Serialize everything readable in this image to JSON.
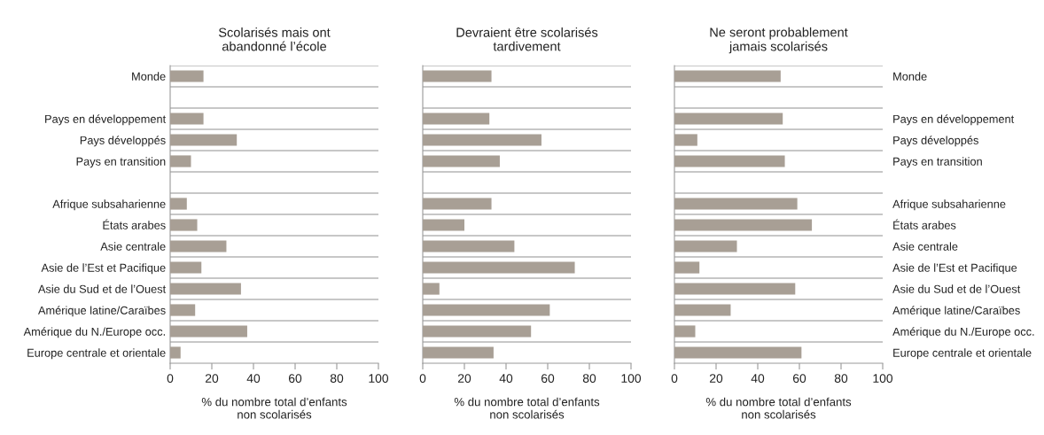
{
  "chart_data": [
    {
      "type": "bar",
      "orientation": "horizontal",
      "title": "Scolarisés mais ont\nabandonné l’école",
      "xlabel": "% du nombre total d’enfants\nnon scolarisés",
      "categories": [
        "Monde",
        null,
        "Pays en développement",
        "Pays développés",
        "Pays en transition",
        null,
        "Afrique subsaharienne",
        "États arabes",
        "Asie centrale",
        "Asie de l’Est et Pacifique",
        "Asie du Sud et de l’Ouest",
        "Amérique latine/Caraïbes",
        "Amérique du N./Europe occ.",
        "Europe centrale et orientale"
      ],
      "values": [
        16,
        null,
        16,
        32,
        10,
        null,
        8,
        13,
        27,
        15,
        34,
        12,
        37,
        5
      ],
      "color": "#a89f95",
      "xlim": [
        0,
        100
      ],
      "xticks": [
        0,
        20,
        40,
        60,
        80,
        100
      ],
      "grid": "y"
    },
    {
      "type": "bar",
      "orientation": "horizontal",
      "title": "Devraient être scolarisés\ntardivement",
      "xlabel": "% du nombre total d’enfants\nnon scolarisés",
      "categories": [
        null,
        null,
        null,
        null,
        null,
        null,
        null,
        null,
        null,
        null,
        null,
        null,
        null,
        null
      ],
      "values": [
        33,
        null,
        32,
        57,
        37,
        null,
        33,
        20,
        44,
        73,
        8,
        61,
        52,
        34
      ],
      "color": "#a89f95",
      "xlim": [
        0,
        100
      ],
      "xticks": [
        0,
        20,
        40,
        60,
        80,
        100
      ],
      "grid": "y",
      "tick_labels": "x"
    },
    {
      "type": "bar",
      "orientation": "horizontal",
      "title": "Ne seront probablement\njamais scolarisés",
      "xlabel": "% du nombre total d’enfants\nnon scolarisés",
      "categories": [
        "Monde",
        null,
        "Pays en développement",
        "Pays développés",
        "Pays en transition",
        null,
        "Afrique subsaharienne",
        "États arabes",
        "Asie centrale",
        "Asie de l’Est et Pacifique",
        "Asie du Sud et de l’Ouest",
        "Amérique latine/Caraïbes",
        "Amérique du N./Europe occ.",
        "Europe centrale et orientale"
      ],
      "values": [
        51,
        null,
        52,
        11,
        53,
        null,
        59,
        66,
        30,
        12,
        58,
        27,
        10,
        61
      ],
      "color": "#a89f95",
      "xlim": [
        0,
        100
      ],
      "xticks": [
        0,
        20,
        40,
        60,
        80,
        100
      ],
      "grid": "y"
    }
  ]
}
